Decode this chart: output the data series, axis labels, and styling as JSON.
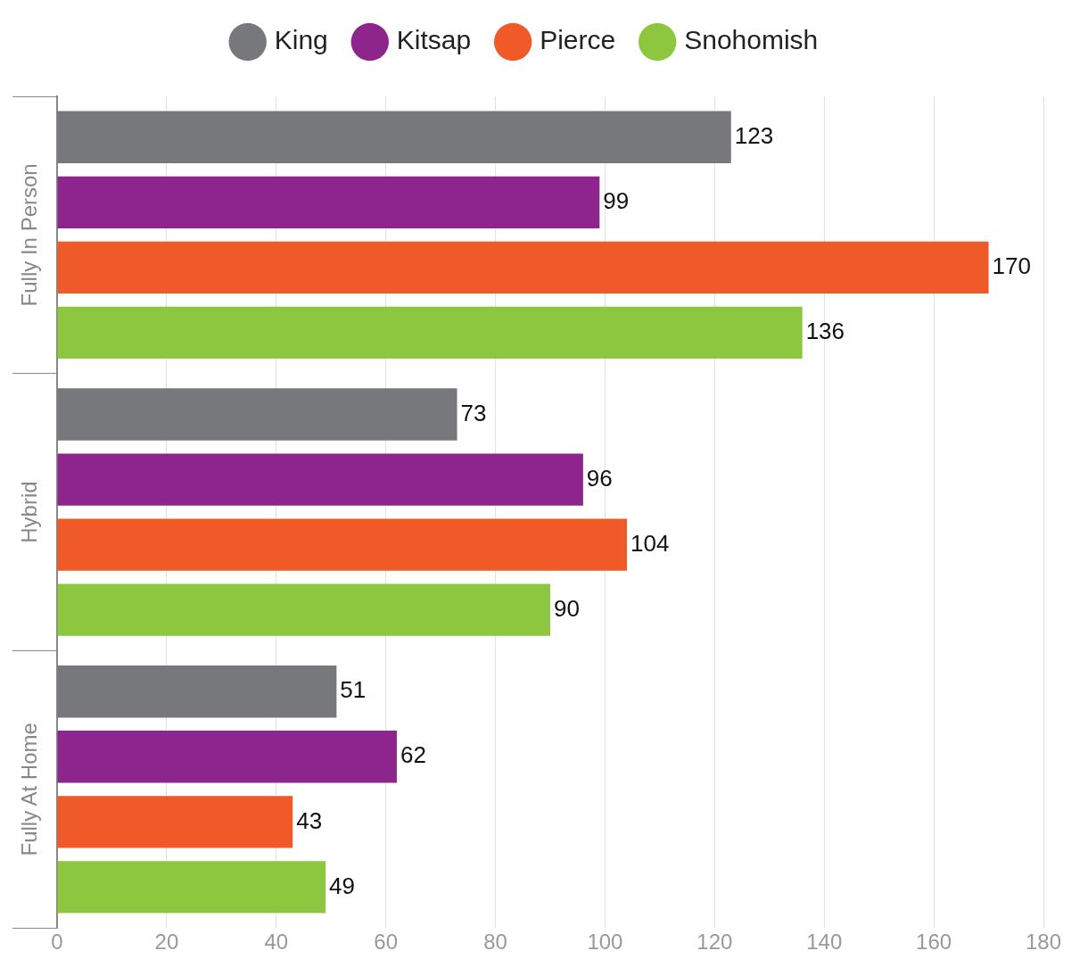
{
  "chart_data": {
    "type": "bar",
    "orientation": "horizontal",
    "categories": [
      "Fully In Person",
      "Hybrid",
      "Fully At Home"
    ],
    "series": [
      {
        "name": "King",
        "color": "#77787b",
        "values": [
          123,
          73,
          51
        ]
      },
      {
        "name": "Kitsap",
        "color": "#8e258d",
        "values": [
          99,
          96,
          62
        ]
      },
      {
        "name": "Pierce",
        "color": "#f05a28",
        "values": [
          170,
          104,
          43
        ]
      },
      {
        "name": "Snohomish",
        "color": "#8dc63f",
        "values": [
          136,
          90,
          49
        ]
      }
    ],
    "xlim": [
      0,
      180
    ],
    "xticks": [
      0,
      20,
      40,
      60,
      80,
      100,
      120,
      140,
      160,
      180
    ],
    "grid": "x",
    "legend": "top",
    "marker": "circle",
    "data_labels": true
  }
}
